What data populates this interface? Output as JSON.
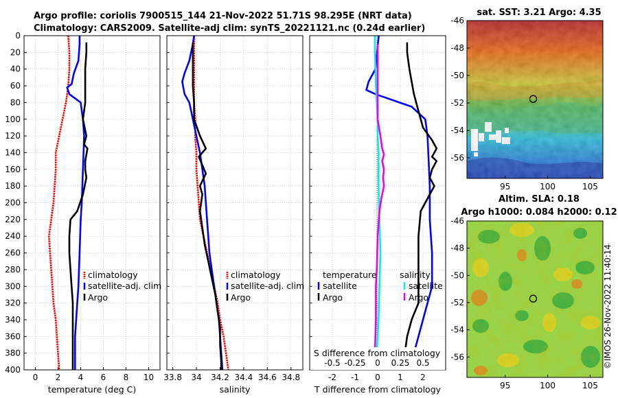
{
  "header": {
    "line1": "Argo profile: coriolis 7900515_144 21-Nov-2022 51.71S 98.295E (NRT data)",
    "line2": "Climatology: CARS2009. Satellite-adj clim: synTS_20221121.nc (0.24d earlier)"
  },
  "colors": {
    "clim": "#ff0000",
    "sat": "#0000ff",
    "argo": "#000000",
    "satS": "#00eeee",
    "diffS": "#ee00ee"
  },
  "chart_data": [
    {
      "id": "temperature",
      "type": "line",
      "xlabel": "temperature (deg C)",
      "xlim": [
        -1,
        11
      ],
      "xticks": [
        0,
        2,
        4,
        6,
        8,
        10
      ],
      "ylim": [
        0,
        400
      ],
      "yticks": [
        0,
        20,
        40,
        60,
        80,
        100,
        120,
        140,
        160,
        180,
        200,
        220,
        240,
        260,
        280,
        300,
        320,
        340,
        360,
        380,
        400
      ],
      "legend": [
        "climatology",
        "satellite-adj. clim",
        "Argo"
      ],
      "series": [
        {
          "name": "climatology",
          "color": "clim",
          "dashed": true,
          "points": [
            [
              2.9,
              0
            ],
            [
              3.0,
              20
            ],
            [
              3.0,
              40
            ],
            [
              2.9,
              60
            ],
            [
              2.7,
              80
            ],
            [
              2.4,
              100
            ],
            [
              2.1,
              120
            ],
            [
              1.8,
              140
            ],
            [
              1.8,
              160
            ],
            [
              1.7,
              180
            ],
            [
              1.6,
              200
            ],
            [
              1.4,
              220
            ],
            [
              1.2,
              240
            ],
            [
              1.3,
              260
            ],
            [
              1.4,
              280
            ],
            [
              1.5,
              300
            ],
            [
              1.6,
              320
            ],
            [
              1.8,
              340
            ],
            [
              1.9,
              360
            ],
            [
              2.0,
              380
            ],
            [
              2.1,
              400
            ]
          ]
        },
        {
          "name": "satellite-adj. clim",
          "color": "sat",
          "points": [
            [
              3.9,
              0
            ],
            [
              3.9,
              10
            ],
            [
              3.8,
              30
            ],
            [
              3.4,
              45
            ],
            [
              3.2,
              58
            ],
            [
              2.8,
              62
            ],
            [
              3.0,
              70
            ],
            [
              4.0,
              80
            ],
            [
              4.2,
              100
            ],
            [
              4.3,
              120
            ],
            [
              4.2,
              160
            ],
            [
              4.1,
              200
            ],
            [
              4.0,
              220
            ],
            [
              3.9,
              260
            ],
            [
              3.8,
              300
            ],
            [
              3.7,
              320
            ],
            [
              3.6,
              340
            ],
            [
              3.5,
              360
            ],
            [
              3.5,
              380
            ],
            [
              3.5,
              400
            ]
          ]
        },
        {
          "name": "Argo",
          "color": "argo",
          "points": [
            [
              4.5,
              8
            ],
            [
              4.5,
              20
            ],
            [
              4.4,
              40
            ],
            [
              4.4,
              60
            ],
            [
              4.4,
              80
            ],
            [
              4.2,
              100
            ],
            [
              4.5,
              120
            ],
            [
              4.3,
              130
            ],
            [
              4.6,
              135
            ],
            [
              4.4,
              150
            ],
            [
              4.4,
              160
            ],
            [
              4.5,
              170
            ],
            [
              4.2,
              190
            ],
            [
              3.7,
              210
            ],
            [
              3.1,
              220
            ],
            [
              3.0,
              240
            ],
            [
              3.0,
              260
            ],
            [
              3.1,
              280
            ],
            [
              3.2,
              300
            ],
            [
              3.3,
              320
            ],
            [
              3.3,
              340
            ],
            [
              3.3,
              360
            ],
            [
              3.3,
              380
            ],
            [
              3.3,
              400
            ]
          ]
        }
      ]
    },
    {
      "id": "salinity",
      "type": "line",
      "xlabel": "salinity",
      "xlim": [
        33.75,
        34.9
      ],
      "xticks": [
        33.8,
        34,
        34.2,
        34.4,
        34.6,
        34.8
      ],
      "xtick_labels": [
        "33.8",
        "34",
        "34.2",
        "34.4",
        "34.6",
        "34.8"
      ],
      "ylim": [
        0,
        400
      ],
      "legend": [
        "climatology",
        "satellite-adj. clim",
        "Argo"
      ],
      "series": [
        {
          "name": "climatology",
          "color": "clim",
          "dashed": true,
          "points": [
            [
              33.98,
              0
            ],
            [
              33.98,
              20
            ],
            [
              33.98,
              40
            ],
            [
              33.98,
              60
            ],
            [
              33.98,
              80
            ],
            [
              33.99,
              100
            ],
            [
              33.99,
              120
            ],
            [
              34.0,
              140
            ],
            [
              34.0,
              160
            ],
            [
              34.01,
              180
            ],
            [
              34.02,
              200
            ],
            [
              34.03,
              220
            ],
            [
              34.06,
              240
            ],
            [
              34.09,
              260
            ],
            [
              34.12,
              280
            ],
            [
              34.15,
              300
            ],
            [
              34.18,
              320
            ],
            [
              34.2,
              340
            ],
            [
              34.23,
              360
            ],
            [
              34.25,
              380
            ],
            [
              34.27,
              400
            ]
          ]
        },
        {
          "name": "satellite-adj. clim",
          "color": "sat",
          "points": [
            [
              33.98,
              0
            ],
            [
              33.97,
              10
            ],
            [
              33.94,
              30
            ],
            [
              33.9,
              45
            ],
            [
              33.88,
              55
            ],
            [
              33.9,
              70
            ],
            [
              33.94,
              80
            ],
            [
              33.97,
              100
            ],
            [
              34.0,
              120
            ],
            [
              34.03,
              140
            ],
            [
              34.05,
              160
            ],
            [
              34.07,
              180
            ],
            [
              34.08,
              200
            ],
            [
              34.09,
              220
            ],
            [
              34.1,
              240
            ],
            [
              34.11,
              260
            ],
            [
              34.13,
              280
            ],
            [
              34.15,
              300
            ],
            [
              34.17,
              320
            ],
            [
              34.19,
              340
            ],
            [
              34.2,
              360
            ],
            [
              34.21,
              380
            ],
            [
              34.22,
              400
            ]
          ]
        },
        {
          "name": "Argo",
          "color": "argo",
          "points": [
            [
              33.97,
              8
            ],
            [
              33.97,
              20
            ],
            [
              33.97,
              40
            ],
            [
              33.97,
              60
            ],
            [
              33.98,
              80
            ],
            [
              33.98,
              100
            ],
            [
              34.03,
              120
            ],
            [
              34.08,
              135
            ],
            [
              34.02,
              145
            ],
            [
              34.05,
              155
            ],
            [
              34.08,
              165
            ],
            [
              34.03,
              180
            ],
            [
              34.05,
              190
            ],
            [
              34.04,
              200
            ],
            [
              34.03,
              210
            ],
            [
              34.05,
              230
            ],
            [
              34.07,
              250
            ],
            [
              34.1,
              270
            ],
            [
              34.13,
              290
            ],
            [
              34.16,
              310
            ],
            [
              34.18,
              330
            ],
            [
              34.2,
              350
            ],
            [
              34.2,
              370
            ],
            [
              34.21,
              390
            ],
            [
              34.21,
              400
            ]
          ]
        }
      ]
    },
    {
      "id": "difference",
      "type": "line",
      "xlabel": "T difference from climatology",
      "xlim": [
        -3,
        3
      ],
      "xticks": [
        -2,
        -1,
        0,
        1,
        2
      ],
      "top_label": "S difference from climatology",
      "top_ticks": [
        -0.5,
        -0.25,
        0,
        0.25,
        0.5
      ],
      "top_tick_labels": [
        "-0.5",
        "-0.25",
        "0",
        "0.25",
        "0.5"
      ],
      "ylim": [
        0,
        400
      ],
      "legend": {
        "temp_title": "temperature",
        "sal_title": "salinity",
        "entries": [
          {
            "label": "satellite",
            "color": "sat",
            "col": "temp"
          },
          {
            "label": "Argo",
            "color": "argo",
            "col": "temp"
          },
          {
            "label": "satellite",
            "color": "satS",
            "col": "sal"
          },
          {
            "label": "Argo",
            "color": "diffS",
            "col": "sal"
          }
        ]
      },
      "series": [
        {
          "name": "T satellite",
          "color": "sat",
          "scale": "T",
          "points": [
            [
              0.05,
              0
            ],
            [
              -0.1,
              40
            ],
            [
              -0.4,
              55
            ],
            [
              -0.5,
              65
            ],
            [
              -0.1,
              70
            ],
            [
              1.5,
              85
            ],
            [
              2.1,
              100
            ],
            [
              2.2,
              120
            ],
            [
              2.3,
              180
            ],
            [
              2.3,
              220
            ],
            [
              2.4,
              260
            ],
            [
              2.4,
              300
            ],
            [
              2.2,
              320
            ],
            [
              2.0,
              340
            ],
            [
              1.8,
              360
            ],
            [
              1.6,
              380
            ],
            [
              1.5,
              400
            ]
          ]
        },
        {
          "name": "T Argo",
          "color": "argo",
          "scale": "T",
          "points": [
            [
              1.3,
              8
            ],
            [
              1.3,
              20
            ],
            [
              1.4,
              40
            ],
            [
              1.6,
              70
            ],
            [
              1.8,
              90
            ],
            [
              2.0,
              110
            ],
            [
              2.4,
              125
            ],
            [
              2.6,
              135
            ],
            [
              2.4,
              145
            ],
            [
              2.6,
              150
            ],
            [
              2.4,
              160
            ],
            [
              2.3,
              170
            ],
            [
              2.5,
              180
            ],
            [
              2.2,
              195
            ],
            [
              1.9,
              210
            ],
            [
              1.8,
              240
            ],
            [
              1.8,
              280
            ],
            [
              1.8,
              320
            ],
            [
              1.5,
              340
            ],
            [
              1.3,
              360
            ],
            [
              1.2,
              380
            ],
            [
              1.2,
              400
            ]
          ]
        },
        {
          "name": "S satellite",
          "color": "satS",
          "scale": "S",
          "points": [
            [
              -0.03,
              0
            ],
            [
              -0.03,
              20
            ],
            [
              -0.02,
              60
            ],
            [
              0.0,
              100
            ],
            [
              0.0,
              120
            ],
            [
              0.01,
              140
            ],
            [
              0.01,
              180
            ],
            [
              0.02,
              220
            ],
            [
              0.03,
              260
            ],
            [
              0.02,
              300
            ],
            [
              0.01,
              340
            ],
            [
              -0.01,
              380
            ],
            [
              -0.01,
              400
            ]
          ]
        },
        {
          "name": "S Argo",
          "color": "diffS",
          "scale": "S",
          "points": [
            [
              0.0,
              10
            ],
            [
              0.0,
              60
            ],
            [
              0.0,
              100
            ],
            [
              0.03,
              120
            ],
            [
              0.05,
              135
            ],
            [
              0.07,
              142
            ],
            [
              0.05,
              150
            ],
            [
              0.07,
              160
            ],
            [
              0.06,
              170
            ],
            [
              0.07,
              180
            ],
            [
              0.04,
              195
            ],
            [
              0.02,
              210
            ],
            [
              0.0,
              240
            ],
            [
              -0.01,
              280
            ],
            [
              -0.02,
              300
            ],
            [
              -0.02,
              340
            ],
            [
              -0.03,
              380
            ],
            [
              -0.03,
              400
            ]
          ]
        }
      ]
    }
  ],
  "maps": {
    "sst": {
      "title": "sat. SST: 3.21 Argo: 4.35",
      "lon": [
        90.5,
        106.5
      ],
      "lat": [
        -46,
        -57.5
      ],
      "xticks": [
        95,
        100,
        105
      ],
      "yticks": [
        -46,
        -48,
        -50,
        -52,
        -54,
        -56
      ],
      "marker": [
        98.295,
        -51.71
      ]
    },
    "sla": {
      "title1": "Altim. SLA: 0.18",
      "title2": "Argo h1000: 0.084 h2000: 0.12",
      "lon": [
        90.5,
        106.5
      ],
      "lat": [
        -46,
        -57.5
      ],
      "xticks": [
        95,
        100,
        105
      ],
      "yticks": [
        -46,
        -48,
        -50,
        -52,
        -54,
        -56
      ],
      "marker": [
        98.295,
        -51.71
      ]
    }
  },
  "copyright": "©IMOS 26-Nov-2022 11:40:14"
}
